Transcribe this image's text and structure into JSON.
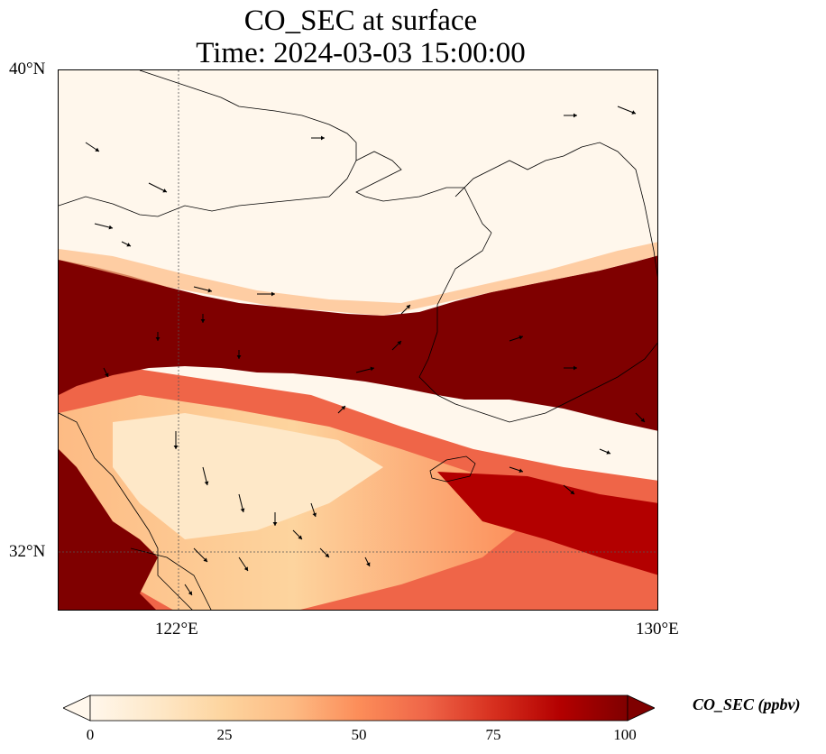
{
  "map": {
    "title_line1": "CO_SEC at surface",
    "title_line2": "Time: 2024-03-03 15:00:00",
    "lat_ticks": [
      "40°N",
      "32°N"
    ],
    "lon_ticks": [
      "122°E",
      "130°E"
    ],
    "variable": "CO_SEC",
    "extent": {
      "lon_min": 120,
      "lon_max": 130,
      "lat_min": 31,
      "lat_max": 40
    },
    "colormap": "OrRd",
    "colors": {
      "low": "#fff7ec",
      "mid": "#fdbb84",
      "high": "#b30000",
      "over": "#7f0000",
      "coast": "#000000",
      "gridline": "#555555"
    },
    "features": [
      "coastline",
      "wind-vectors",
      "gridlines"
    ]
  },
  "colorbar": {
    "label": "CO_SEC (ppbv)",
    "ticks": [
      "0",
      "25",
      "50",
      "75",
      "100"
    ],
    "min": 0,
    "max": 100,
    "extend": "both"
  }
}
